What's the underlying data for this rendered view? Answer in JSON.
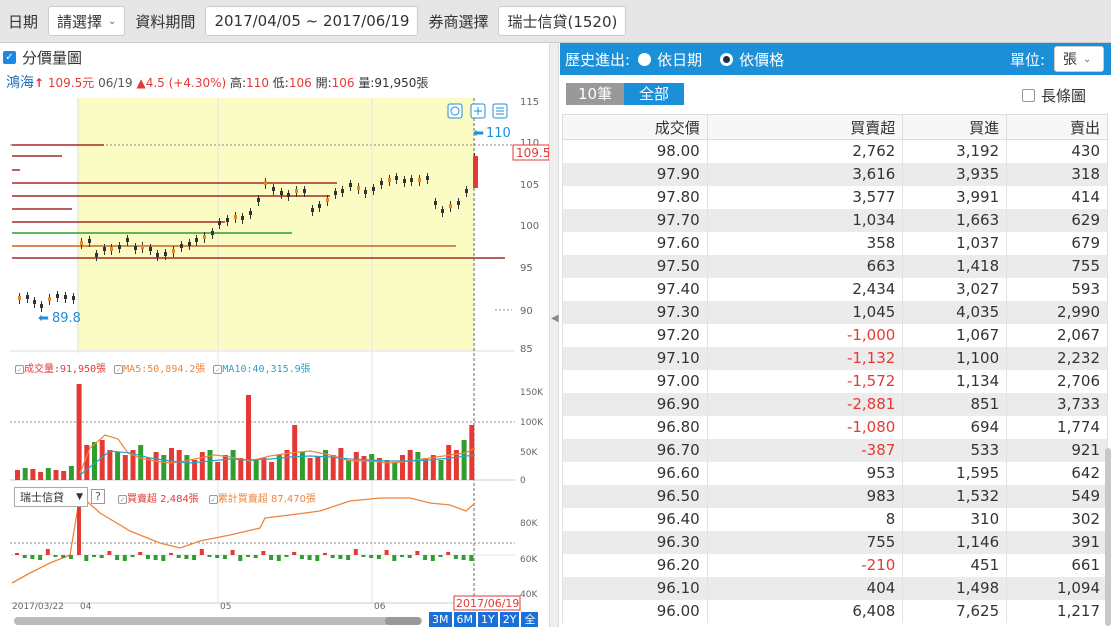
{
  "topbar": {
    "date_label": "日期",
    "date_select": "請選擇",
    "period_label": "資料期間",
    "period_value": "2017/04/05 ~ 2017/06/19",
    "broker_label": "券商選擇",
    "broker_value": "瑞士信貸(1520)"
  },
  "left": {
    "vp_label": "分價量圖",
    "stock_name": "鴻海",
    "price": "109.5元",
    "date": "06/19",
    "change": "▲4.5 (+4.30%)",
    "high_label": "高:",
    "high": "110",
    "low_label": "低:",
    "low": "106",
    "open_label": "開:",
    "open": "106",
    "vol_label": "量:",
    "vol": "91,950張",
    "price_ticks": [
      "115",
      "110",
      "105",
      "100",
      "95",
      "90",
      "85"
    ],
    "mark_high": "110",
    "mark_low": "89.8",
    "last_price_tag": "109.5",
    "legend_vol": "成交量:91,950張",
    "legend_ma5": "MA5:50,894.2張",
    "legend_ma10": "MA10:40,315.9張",
    "vol_ticks": [
      "150K",
      "100K",
      "50K",
      "0"
    ],
    "broker_select": "瑞士信貸",
    "help": "?",
    "legend_net": "買賣超 2,484張",
    "legend_cum": "累計買賣超 87,470張",
    "cum_ticks": [
      "80K",
      "60K",
      "40K"
    ],
    "date_ticks": [
      "2017/03/22",
      "04",
      "05",
      "06"
    ],
    "date_cursor": "2017/06/19",
    "range_buttons": [
      "3M",
      "6M",
      "1Y",
      "2Y",
      "全"
    ]
  },
  "right": {
    "history_label": "歷史進出:",
    "by_date": "依日期",
    "by_price": "依價格",
    "unit_label": "單位:",
    "unit_value": "張",
    "btn_10": "10筆",
    "btn_all": "全部",
    "long_chart": "長條圖",
    "columns": [
      "成交價",
      "買賣超",
      "買進",
      "賣出"
    ],
    "rows": [
      [
        "98.00",
        "2,762",
        "3,192",
        "430"
      ],
      [
        "97.90",
        "3,616",
        "3,935",
        "318"
      ],
      [
        "97.80",
        "3,577",
        "3,991",
        "414"
      ],
      [
        "97.70",
        "1,034",
        "1,663",
        "629"
      ],
      [
        "97.60",
        "358",
        "1,037",
        "679"
      ],
      [
        "97.50",
        "663",
        "1,418",
        "755"
      ],
      [
        "97.40",
        "2,434",
        "3,027",
        "593"
      ],
      [
        "97.30",
        "1,045",
        "4,035",
        "2,990"
      ],
      [
        "97.20",
        "-1,000",
        "1,067",
        "2,067"
      ],
      [
        "97.10",
        "-1,132",
        "1,100",
        "2,232"
      ],
      [
        "97.00",
        "-1,572",
        "1,134",
        "2,706"
      ],
      [
        "96.90",
        "-2,881",
        "851",
        "3,733"
      ],
      [
        "96.80",
        "-1,080",
        "694",
        "1,774"
      ],
      [
        "96.70",
        "-387",
        "533",
        "921"
      ],
      [
        "96.60",
        "953",
        "1,595",
        "642"
      ],
      [
        "96.50",
        "983",
        "1,532",
        "549"
      ],
      [
        "96.40",
        "8",
        "310",
        "302"
      ],
      [
        "96.30",
        "755",
        "1,146",
        "391"
      ],
      [
        "96.20",
        "-210",
        "451",
        "661"
      ],
      [
        "96.10",
        "404",
        "1,498",
        "1,094"
      ],
      [
        "96.00",
        "6,408",
        "7,625",
        "1,217"
      ]
    ]
  },
  "colors": {
    "up": "#e53935",
    "down": "#2e9e2e",
    "accent": "#1b8fd8",
    "highlight": "#fbfbc4"
  }
}
